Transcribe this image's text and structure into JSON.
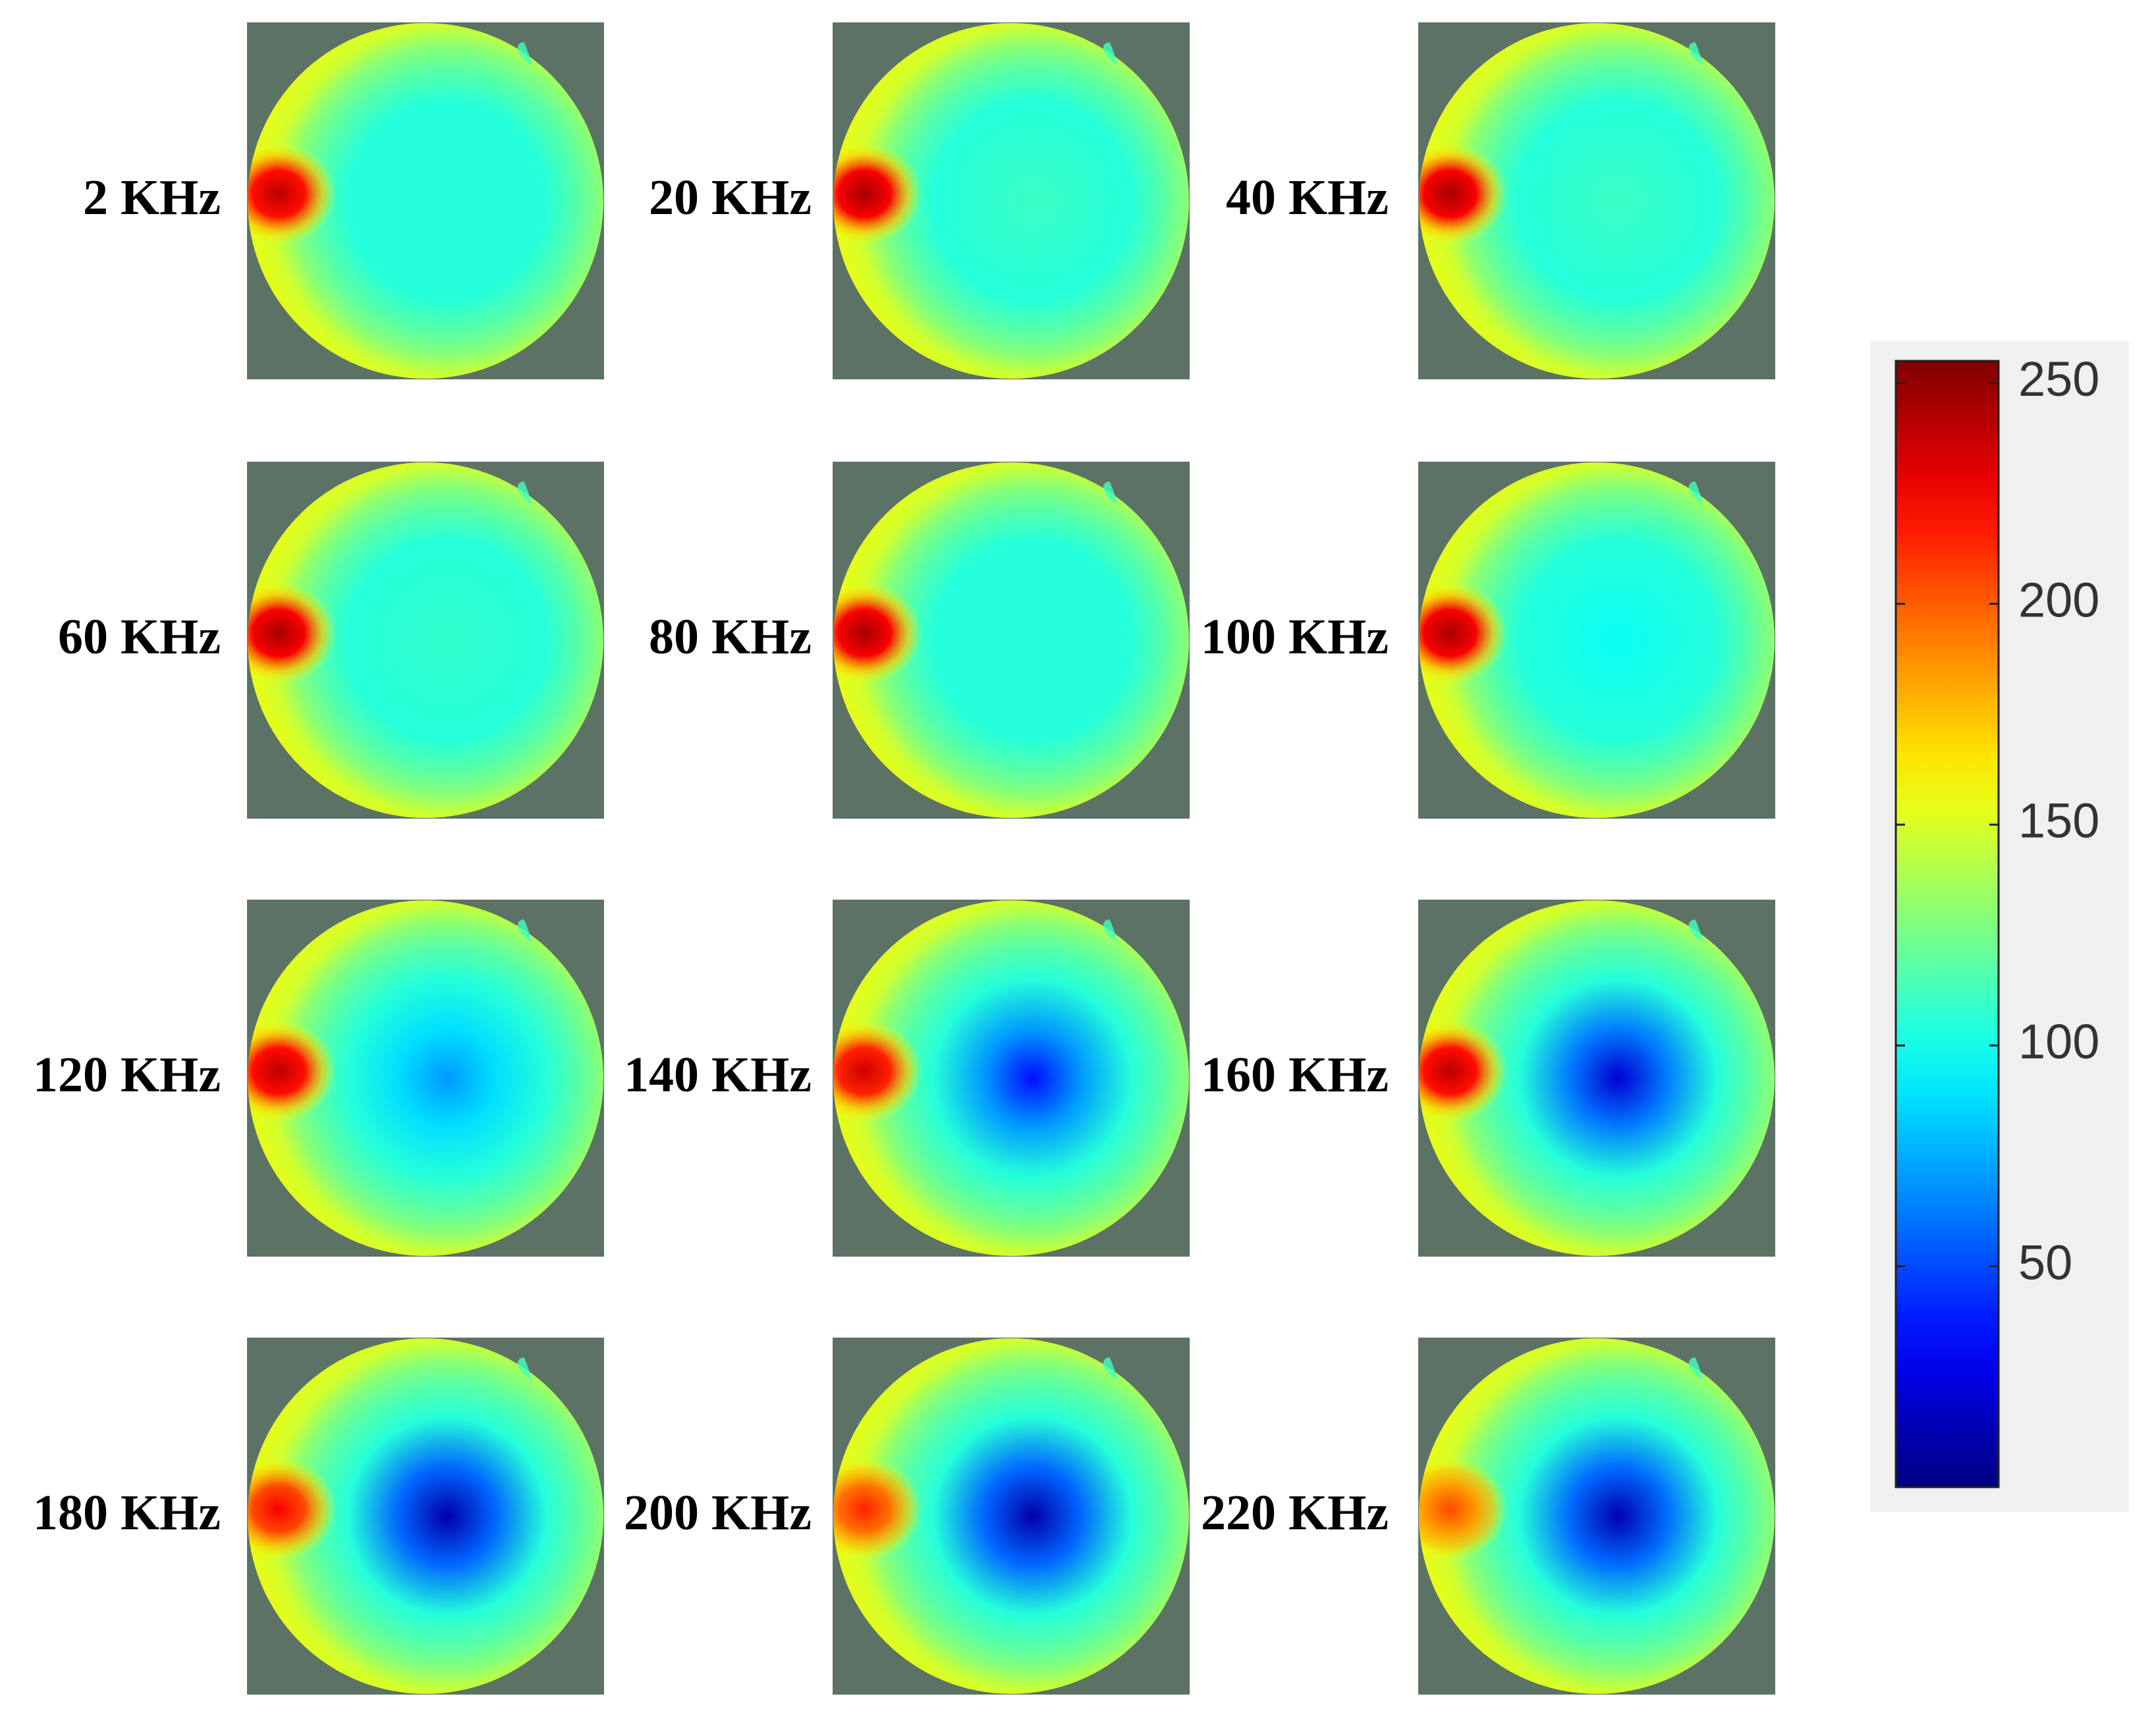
{
  "chart_data": {
    "type": "heatmap",
    "title": "",
    "layout": "4x3 grid of circular reconstructed images",
    "colormap": "jet",
    "background_color": "#5C7264",
    "panels": [
      {
        "label": "2 KHz",
        "frequency_khz": 2,
        "center_min": 105,
        "inclusion_peak": 240
      },
      {
        "label": "20 KHz",
        "frequency_khz": 20,
        "center_min": 110,
        "inclusion_peak": 245
      },
      {
        "label": "40 KHz",
        "frequency_khz": 40,
        "center_min": 110,
        "inclusion_peak": 245
      },
      {
        "label": "60 KHz",
        "frequency_khz": 60,
        "center_min": 108,
        "inclusion_peak": 245
      },
      {
        "label": "80 KHz",
        "frequency_khz": 80,
        "center_min": 105,
        "inclusion_peak": 245
      },
      {
        "label": "100 KHz",
        "frequency_khz": 100,
        "center_min": 98,
        "inclusion_peak": 245
      },
      {
        "label": "120 KHz",
        "frequency_khz": 120,
        "center_min": 70,
        "inclusion_peak": 240
      },
      {
        "label": "140 KHz",
        "frequency_khz": 140,
        "center_min": 35,
        "inclusion_peak": 235
      },
      {
        "label": "160 KHz",
        "frequency_khz": 160,
        "center_min": 20,
        "inclusion_peak": 240
      },
      {
        "label": "180 KHz",
        "frequency_khz": 180,
        "center_min": 10,
        "inclusion_peak": 225
      },
      {
        "label": "200 KHz",
        "frequency_khz": 200,
        "center_min": 10,
        "inclusion_peak": 215
      },
      {
        "label": "220 KHz",
        "frequency_khz": 220,
        "center_min": 12,
        "inclusion_peak": 205
      }
    ],
    "colorbar": {
      "min": 0,
      "max": 255,
      "ticks": [
        250,
        200,
        150,
        100,
        50
      ],
      "tick_labels": [
        "250",
        "200",
        "150",
        "100",
        "50"
      ],
      "background_color": "#F0F0F0",
      "position": "right"
    }
  }
}
